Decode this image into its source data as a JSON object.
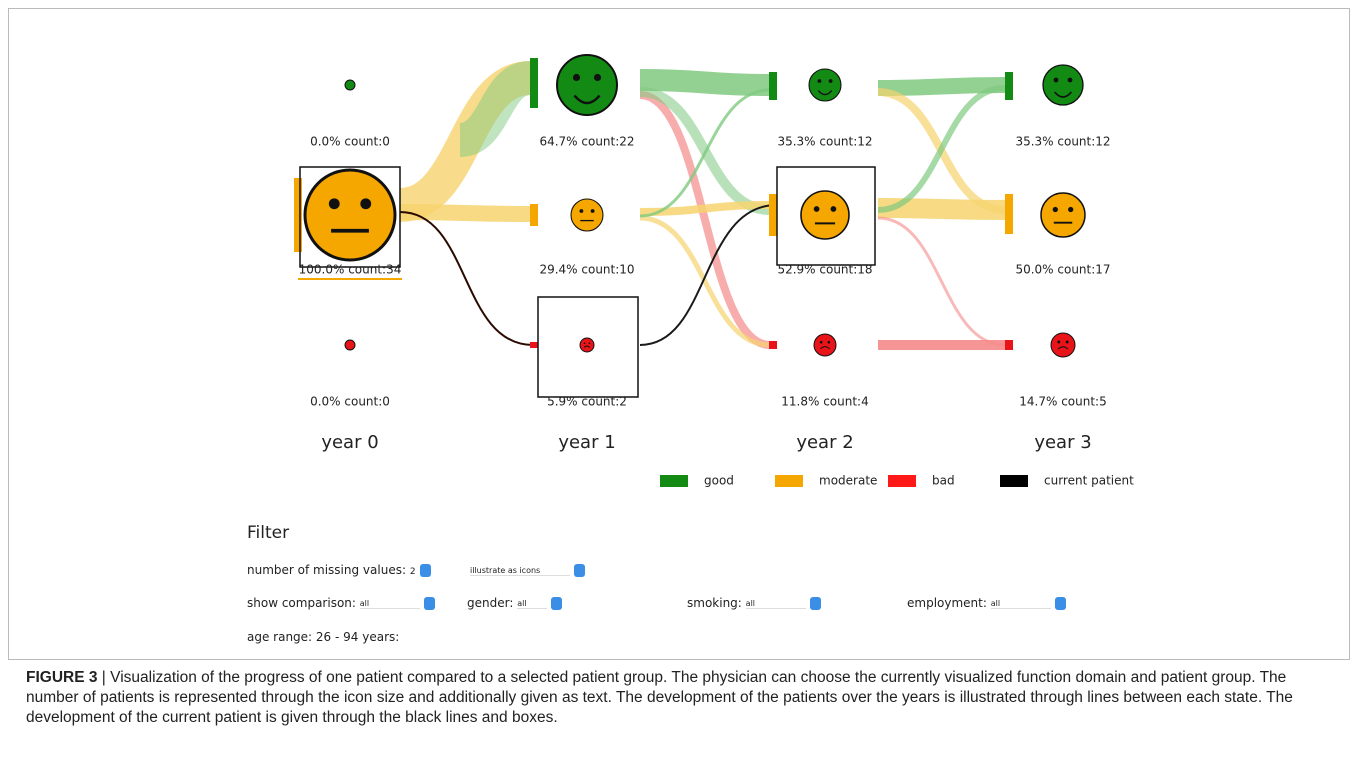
{
  "years": [
    {
      "label": "year 0",
      "nodes": [
        "0.0% count:0",
        "100.0% count:34",
        "0.0% count:0"
      ]
    },
    {
      "label": "year 1",
      "nodes": [
        "64.7% count:22",
        "29.4% count:10",
        "5.9% count:2"
      ]
    },
    {
      "label": "year 2",
      "nodes": [
        "35.3% count:12",
        "52.9% count:18",
        "11.8% count:4"
      ]
    },
    {
      "label": "year 3",
      "nodes": [
        "35.3% count:12",
        "50.0% count:17",
        "14.7% count:5"
      ]
    }
  ],
  "legend": [
    "good",
    "moderate",
    "bad",
    "current patient"
  ],
  "filter": {
    "title": "Filter",
    "missing_label": "number of missing values:",
    "missing_value": "2",
    "illustrate": "illustrate as icons",
    "comparison_label": "show comparison:",
    "comparison_value": "all",
    "gender_label": "gender:",
    "gender_value": "all",
    "smoking_label": "smoking:",
    "smoking_value": "all",
    "employment_label": "employment:",
    "employment_value": "all",
    "age": "age range: 26 - 94 years:"
  },
  "caption": {
    "label": "FIGURE 3",
    "text": "| Visualization of the progress of one patient compared to a selected patient group. The physician can choose the currently visualized function domain and patient group. The number of patients is represented through the icon size and additionally given as text. The development of the patients over the years is illustrated through lines between each state. The development of the current patient is given through the black lines and boxes."
  }
}
